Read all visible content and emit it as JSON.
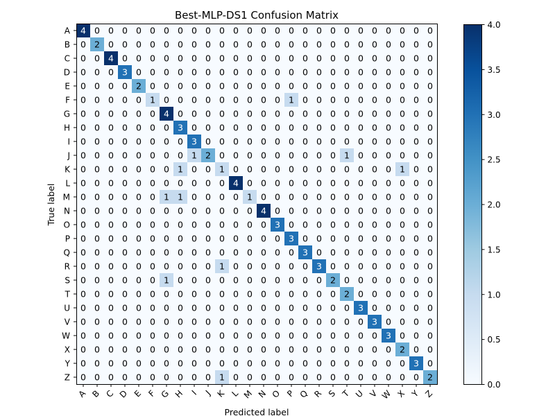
{
  "chart_data": {
    "type": "heatmap",
    "title": "Best-MLP-DS1 Confusion Matrix",
    "xlabel": "Predicted label",
    "ylabel": "True label",
    "x_labels": [
      "A",
      "B",
      "C",
      "D",
      "E",
      "F",
      "G",
      "H",
      "I",
      "J",
      "K",
      "L",
      "M",
      "N",
      "O",
      "P",
      "Q",
      "R",
      "S",
      "T",
      "U",
      "V",
      "W",
      "X",
      "Y",
      "Z"
    ],
    "y_labels": [
      "A",
      "B",
      "C",
      "D",
      "E",
      "F",
      "G",
      "H",
      "I",
      "J",
      "K",
      "L",
      "M",
      "N",
      "O",
      "P",
      "Q",
      "R",
      "S",
      "T",
      "U",
      "V",
      "W",
      "X",
      "Y",
      "Z"
    ],
    "matrix": [
      [
        4,
        0,
        0,
        0,
        0,
        0,
        0,
        0,
        0,
        0,
        0,
        0,
        0,
        0,
        0,
        0,
        0,
        0,
        0,
        0,
        0,
        0,
        0,
        0,
        0,
        0
      ],
      [
        0,
        2,
        0,
        0,
        0,
        0,
        0,
        0,
        0,
        0,
        0,
        0,
        0,
        0,
        0,
        0,
        0,
        0,
        0,
        0,
        0,
        0,
        0,
        0,
        0,
        0
      ],
      [
        0,
        0,
        4,
        0,
        0,
        0,
        0,
        0,
        0,
        0,
        0,
        0,
        0,
        0,
        0,
        0,
        0,
        0,
        0,
        0,
        0,
        0,
        0,
        0,
        0,
        0
      ],
      [
        0,
        0,
        0,
        3,
        0,
        0,
        0,
        0,
        0,
        0,
        0,
        0,
        0,
        0,
        0,
        0,
        0,
        0,
        0,
        0,
        0,
        0,
        0,
        0,
        0,
        0
      ],
      [
        0,
        0,
        0,
        0,
        2,
        0,
        0,
        0,
        0,
        0,
        0,
        0,
        0,
        0,
        0,
        0,
        0,
        0,
        0,
        0,
        0,
        0,
        0,
        0,
        0,
        0
      ],
      [
        0,
        0,
        0,
        0,
        0,
        1,
        0,
        0,
        0,
        0,
        0,
        0,
        0,
        0,
        0,
        1,
        0,
        0,
        0,
        0,
        0,
        0,
        0,
        0,
        0,
        0
      ],
      [
        0,
        0,
        0,
        0,
        0,
        0,
        4,
        0,
        0,
        0,
        0,
        0,
        0,
        0,
        0,
        0,
        0,
        0,
        0,
        0,
        0,
        0,
        0,
        0,
        0,
        0
      ],
      [
        0,
        0,
        0,
        0,
        0,
        0,
        0,
        3,
        0,
        0,
        0,
        0,
        0,
        0,
        0,
        0,
        0,
        0,
        0,
        0,
        0,
        0,
        0,
        0,
        0,
        0
      ],
      [
        0,
        0,
        0,
        0,
        0,
        0,
        0,
        0,
        3,
        0,
        0,
        0,
        0,
        0,
        0,
        0,
        0,
        0,
        0,
        0,
        0,
        0,
        0,
        0,
        0,
        0
      ],
      [
        0,
        0,
        0,
        0,
        0,
        0,
        0,
        0,
        1,
        2,
        0,
        0,
        0,
        0,
        0,
        0,
        0,
        0,
        0,
        1,
        0,
        0,
        0,
        0,
        0,
        0
      ],
      [
        0,
        0,
        0,
        0,
        0,
        0,
        0,
        1,
        0,
        0,
        1,
        0,
        0,
        0,
        0,
        0,
        0,
        0,
        0,
        0,
        0,
        0,
        0,
        1,
        0,
        0
      ],
      [
        0,
        0,
        0,
        0,
        0,
        0,
        0,
        0,
        0,
        0,
        0,
        4,
        0,
        0,
        0,
        0,
        0,
        0,
        0,
        0,
        0,
        0,
        0,
        0,
        0,
        0
      ],
      [
        0,
        0,
        0,
        0,
        0,
        0,
        1,
        1,
        0,
        0,
        0,
        0,
        1,
        0,
        0,
        0,
        0,
        0,
        0,
        0,
        0,
        0,
        0,
        0,
        0,
        0
      ],
      [
        0,
        0,
        0,
        0,
        0,
        0,
        0,
        0,
        0,
        0,
        0,
        0,
        0,
        4,
        0,
        0,
        0,
        0,
        0,
        0,
        0,
        0,
        0,
        0,
        0,
        0
      ],
      [
        0,
        0,
        0,
        0,
        0,
        0,
        0,
        0,
        0,
        0,
        0,
        0,
        0,
        0,
        3,
        0,
        0,
        0,
        0,
        0,
        0,
        0,
        0,
        0,
        0,
        0
      ],
      [
        0,
        0,
        0,
        0,
        0,
        0,
        0,
        0,
        0,
        0,
        0,
        0,
        0,
        0,
        0,
        3,
        0,
        0,
        0,
        0,
        0,
        0,
        0,
        0,
        0,
        0
      ],
      [
        0,
        0,
        0,
        0,
        0,
        0,
        0,
        0,
        0,
        0,
        0,
        0,
        0,
        0,
        0,
        0,
        3,
        0,
        0,
        0,
        0,
        0,
        0,
        0,
        0,
        0
      ],
      [
        0,
        0,
        0,
        0,
        0,
        0,
        0,
        0,
        0,
        0,
        1,
        0,
        0,
        0,
        0,
        0,
        0,
        3,
        0,
        0,
        0,
        0,
        0,
        0,
        0,
        0
      ],
      [
        0,
        0,
        0,
        0,
        0,
        0,
        1,
        0,
        0,
        0,
        0,
        0,
        0,
        0,
        0,
        0,
        0,
        0,
        2,
        0,
        0,
        0,
        0,
        0,
        0,
        0
      ],
      [
        0,
        0,
        0,
        0,
        0,
        0,
        0,
        0,
        0,
        0,
        0,
        0,
        0,
        0,
        0,
        0,
        0,
        0,
        0,
        2,
        0,
        0,
        0,
        0,
        0,
        0
      ],
      [
        0,
        0,
        0,
        0,
        0,
        0,
        0,
        0,
        0,
        0,
        0,
        0,
        0,
        0,
        0,
        0,
        0,
        0,
        0,
        0,
        3,
        0,
        0,
        0,
        0,
        0
      ],
      [
        0,
        0,
        0,
        0,
        0,
        0,
        0,
        0,
        0,
        0,
        0,
        0,
        0,
        0,
        0,
        0,
        0,
        0,
        0,
        0,
        0,
        3,
        0,
        0,
        0,
        0
      ],
      [
        0,
        0,
        0,
        0,
        0,
        0,
        0,
        0,
        0,
        0,
        0,
        0,
        0,
        0,
        0,
        0,
        0,
        0,
        0,
        0,
        0,
        0,
        3,
        0,
        0,
        0
      ],
      [
        0,
        0,
        0,
        0,
        0,
        0,
        0,
        0,
        0,
        0,
        0,
        0,
        0,
        0,
        0,
        0,
        0,
        0,
        0,
        0,
        0,
        0,
        0,
        2,
        0,
        0
      ],
      [
        0,
        0,
        0,
        0,
        0,
        0,
        0,
        0,
        0,
        0,
        0,
        0,
        0,
        0,
        0,
        0,
        0,
        0,
        0,
        0,
        0,
        0,
        0,
        0,
        3,
        0
      ],
      [
        0,
        0,
        0,
        0,
        0,
        0,
        0,
        0,
        0,
        0,
        1,
        0,
        0,
        0,
        0,
        0,
        0,
        0,
        0,
        0,
        0,
        0,
        0,
        0,
        0,
        2
      ]
    ],
    "colormap": "Blues",
    "vmin": 0,
    "vmax": 4,
    "colorbar_ticks": [
      "0.0",
      "0.5",
      "1.0",
      "1.5",
      "2.0",
      "2.5",
      "3.0",
      "3.5",
      "4.0"
    ],
    "colorbar_range": [
      0,
      4
    ],
    "grid": false,
    "legend": "colorbar-right",
    "annotation_light_text_color": "#ffffff",
    "annotation_dark_text_color": "#000000"
  }
}
